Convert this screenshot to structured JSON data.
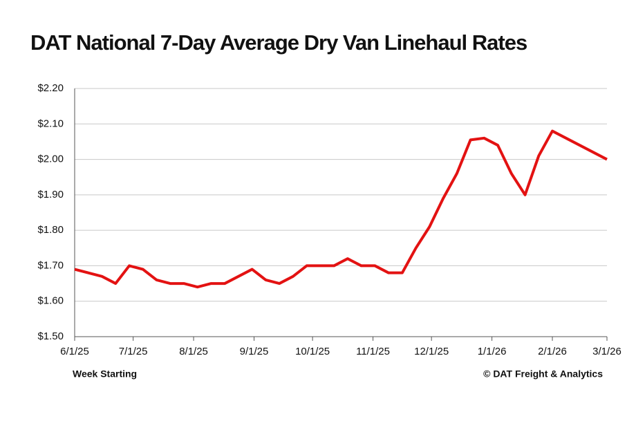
{
  "chart_data": {
    "type": "line",
    "title": "DAT National 7-Day Average Dry Van  Linehaul Rates",
    "x_label": "Week Starting",
    "source": "© DAT Freight & Analytics",
    "x": [
      "6/1/25",
      "6/8/25",
      "6/15/25",
      "6/22/25",
      "6/29/25",
      "7/6/25",
      "7/13/25",
      "7/20/25",
      "7/27/25",
      "8/3/25",
      "8/10/25",
      "8/17/25",
      "8/24/25",
      "8/31/25",
      "9/7/25",
      "9/14/25",
      "9/21/25",
      "9/28/25",
      "10/5/25",
      "10/12/25",
      "10/19/25",
      "10/26/25",
      "11/2/25",
      "11/9/25",
      "11/16/25",
      "11/23/25",
      "11/30/25",
      "12/7/25",
      "12/14/25",
      "12/21/25",
      "12/28/25",
      "1/4/26",
      "1/11/26",
      "1/18/26",
      "1/25/26",
      "2/1/26",
      "2/8/26",
      "2/15/26",
      "2/22/26",
      "3/1/26"
    ],
    "series": [
      {
        "name": "Dry Van Linehaul Rate",
        "color": "#e31212",
        "values": [
          1.69,
          1.68,
          1.67,
          1.65,
          1.7,
          1.69,
          1.66,
          1.65,
          1.65,
          1.64,
          1.65,
          1.65,
          1.67,
          1.69,
          1.66,
          1.65,
          1.67,
          1.7,
          1.7,
          1.7,
          1.72,
          1.7,
          1.7,
          1.68,
          1.68,
          1.75,
          1.81,
          1.89,
          1.96,
          2.055,
          2.06,
          2.04,
          1.96,
          1.9,
          2.01,
          2.08,
          2.06,
          2.04,
          2.02,
          2.0
        ]
      }
    ],
    "xlim": [
      "6/1/25",
      "3/1/26"
    ],
    "xticks": [
      "6/1/25",
      "7/1/25",
      "8/1/25",
      "9/1/25",
      "10/1/25",
      "11/1/25",
      "12/1/25",
      "1/1/26",
      "2/1/26",
      "3/1/26"
    ],
    "ylim": [
      1.5,
      2.2
    ],
    "yticks": [
      {
        "value": 1.5,
        "label": "$1.50"
      },
      {
        "value": 1.6,
        "label": "$1.60"
      },
      {
        "value": 1.7,
        "label": "$1.70"
      },
      {
        "value": 1.8,
        "label": "$1.80"
      },
      {
        "value": 1.9,
        "label": "$1.90"
      },
      {
        "value": 2.0,
        "label": "$2.00"
      },
      {
        "value": 2.1,
        "label": "$2.10"
      },
      {
        "value": 2.2,
        "label": "$2.20"
      }
    ],
    "grid": true
  }
}
